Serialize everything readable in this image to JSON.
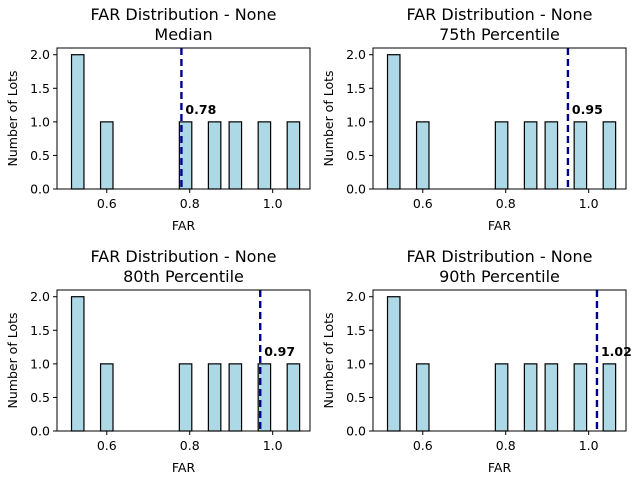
{
  "chart_data": [
    {
      "type": "bar",
      "title": "FAR Distribution - None\nMedian",
      "xlabel": "FAR",
      "ylabel": "Number of Lots",
      "bars": [
        {
          "x": 0.53,
          "count": 2
        },
        {
          "x": 0.6,
          "count": 1
        },
        {
          "x": 0.79,
          "count": 1
        },
        {
          "x": 0.86,
          "count": 1
        },
        {
          "x": 0.91,
          "count": 1
        },
        {
          "x": 0.98,
          "count": 1
        },
        {
          "x": 1.05,
          "count": 1
        }
      ],
      "bin_width": 0.03,
      "line": {
        "value": 0.78,
        "label": "0.78"
      },
      "xlim": [
        0.48,
        1.09
      ],
      "ylim": [
        0,
        2.1
      ],
      "xticks": [
        {
          "v": 0.6,
          "label": "0.6"
        },
        {
          "v": 0.8,
          "label": "0.8"
        },
        {
          "v": 1.0,
          "label": "1.0"
        }
      ],
      "yticks": [
        {
          "v": 0.0,
          "label": "0.0"
        },
        {
          "v": 0.5,
          "label": "0.5"
        },
        {
          "v": 1.0,
          "label": "1.0"
        },
        {
          "v": 1.5,
          "label": "1.5"
        },
        {
          "v": 2.0,
          "label": "2.0"
        }
      ],
      "grid": false,
      "colors": {
        "bar": "#add8e6",
        "edge": "#000000",
        "line": "#00008b"
      }
    },
    {
      "type": "bar",
      "title": "FAR Distribution - None\n75th Percentile",
      "xlabel": "FAR",
      "ylabel": "Number of Lots",
      "bars": [
        {
          "x": 0.53,
          "count": 2
        },
        {
          "x": 0.6,
          "count": 1
        },
        {
          "x": 0.79,
          "count": 1
        },
        {
          "x": 0.86,
          "count": 1
        },
        {
          "x": 0.91,
          "count": 1
        },
        {
          "x": 0.98,
          "count": 1
        },
        {
          "x": 1.05,
          "count": 1
        }
      ],
      "bin_width": 0.03,
      "line": {
        "value": 0.95,
        "label": "0.95"
      },
      "xlim": [
        0.48,
        1.09
      ],
      "ylim": [
        0,
        2.1
      ],
      "xticks": [
        {
          "v": 0.6,
          "label": "0.6"
        },
        {
          "v": 0.8,
          "label": "0.8"
        },
        {
          "v": 1.0,
          "label": "1.0"
        }
      ],
      "yticks": [
        {
          "v": 0.0,
          "label": "0.0"
        },
        {
          "v": 0.5,
          "label": "0.5"
        },
        {
          "v": 1.0,
          "label": "1.0"
        },
        {
          "v": 1.5,
          "label": "1.5"
        },
        {
          "v": 2.0,
          "label": "2.0"
        }
      ],
      "grid": false,
      "colors": {
        "bar": "#add8e6",
        "edge": "#000000",
        "line": "#00008b"
      }
    },
    {
      "type": "bar",
      "title": "FAR Distribution - None\n80th Percentile",
      "xlabel": "FAR",
      "ylabel": "Number of Lots",
      "bars": [
        {
          "x": 0.53,
          "count": 2
        },
        {
          "x": 0.6,
          "count": 1
        },
        {
          "x": 0.79,
          "count": 1
        },
        {
          "x": 0.86,
          "count": 1
        },
        {
          "x": 0.91,
          "count": 1
        },
        {
          "x": 0.98,
          "count": 1
        },
        {
          "x": 1.05,
          "count": 1
        }
      ],
      "bin_width": 0.03,
      "line": {
        "value": 0.97,
        "label": "0.97"
      },
      "xlim": [
        0.48,
        1.09
      ],
      "ylim": [
        0,
        2.1
      ],
      "xticks": [
        {
          "v": 0.6,
          "label": "0.6"
        },
        {
          "v": 0.8,
          "label": "0.8"
        },
        {
          "v": 1.0,
          "label": "1.0"
        }
      ],
      "yticks": [
        {
          "v": 0.0,
          "label": "0.0"
        },
        {
          "v": 0.5,
          "label": "0.5"
        },
        {
          "v": 1.0,
          "label": "1.0"
        },
        {
          "v": 1.5,
          "label": "1.5"
        },
        {
          "v": 2.0,
          "label": "2.0"
        }
      ],
      "grid": false,
      "colors": {
        "bar": "#add8e6",
        "edge": "#000000",
        "line": "#00008b"
      }
    },
    {
      "type": "bar",
      "title": "FAR Distribution - None\n90th Percentile",
      "xlabel": "FAR",
      "ylabel": "Number of Lots",
      "bars": [
        {
          "x": 0.53,
          "count": 2
        },
        {
          "x": 0.6,
          "count": 1
        },
        {
          "x": 0.79,
          "count": 1
        },
        {
          "x": 0.86,
          "count": 1
        },
        {
          "x": 0.91,
          "count": 1
        },
        {
          "x": 0.98,
          "count": 1
        },
        {
          "x": 1.05,
          "count": 1
        }
      ],
      "bin_width": 0.03,
      "line": {
        "value": 1.02,
        "label": "1.02"
      },
      "xlim": [
        0.48,
        1.09
      ],
      "ylim": [
        0,
        2.1
      ],
      "xticks": [
        {
          "v": 0.6,
          "label": "0.6"
        },
        {
          "v": 0.8,
          "label": "0.8"
        },
        {
          "v": 1.0,
          "label": "1.0"
        }
      ],
      "yticks": [
        {
          "v": 0.0,
          "label": "0.0"
        },
        {
          "v": 0.5,
          "label": "0.5"
        },
        {
          "v": 1.0,
          "label": "1.0"
        },
        {
          "v": 1.5,
          "label": "1.5"
        },
        {
          "v": 2.0,
          "label": "2.0"
        }
      ],
      "grid": false,
      "colors": {
        "bar": "#add8e6",
        "edge": "#000000",
        "line": "#00008b"
      }
    }
  ]
}
